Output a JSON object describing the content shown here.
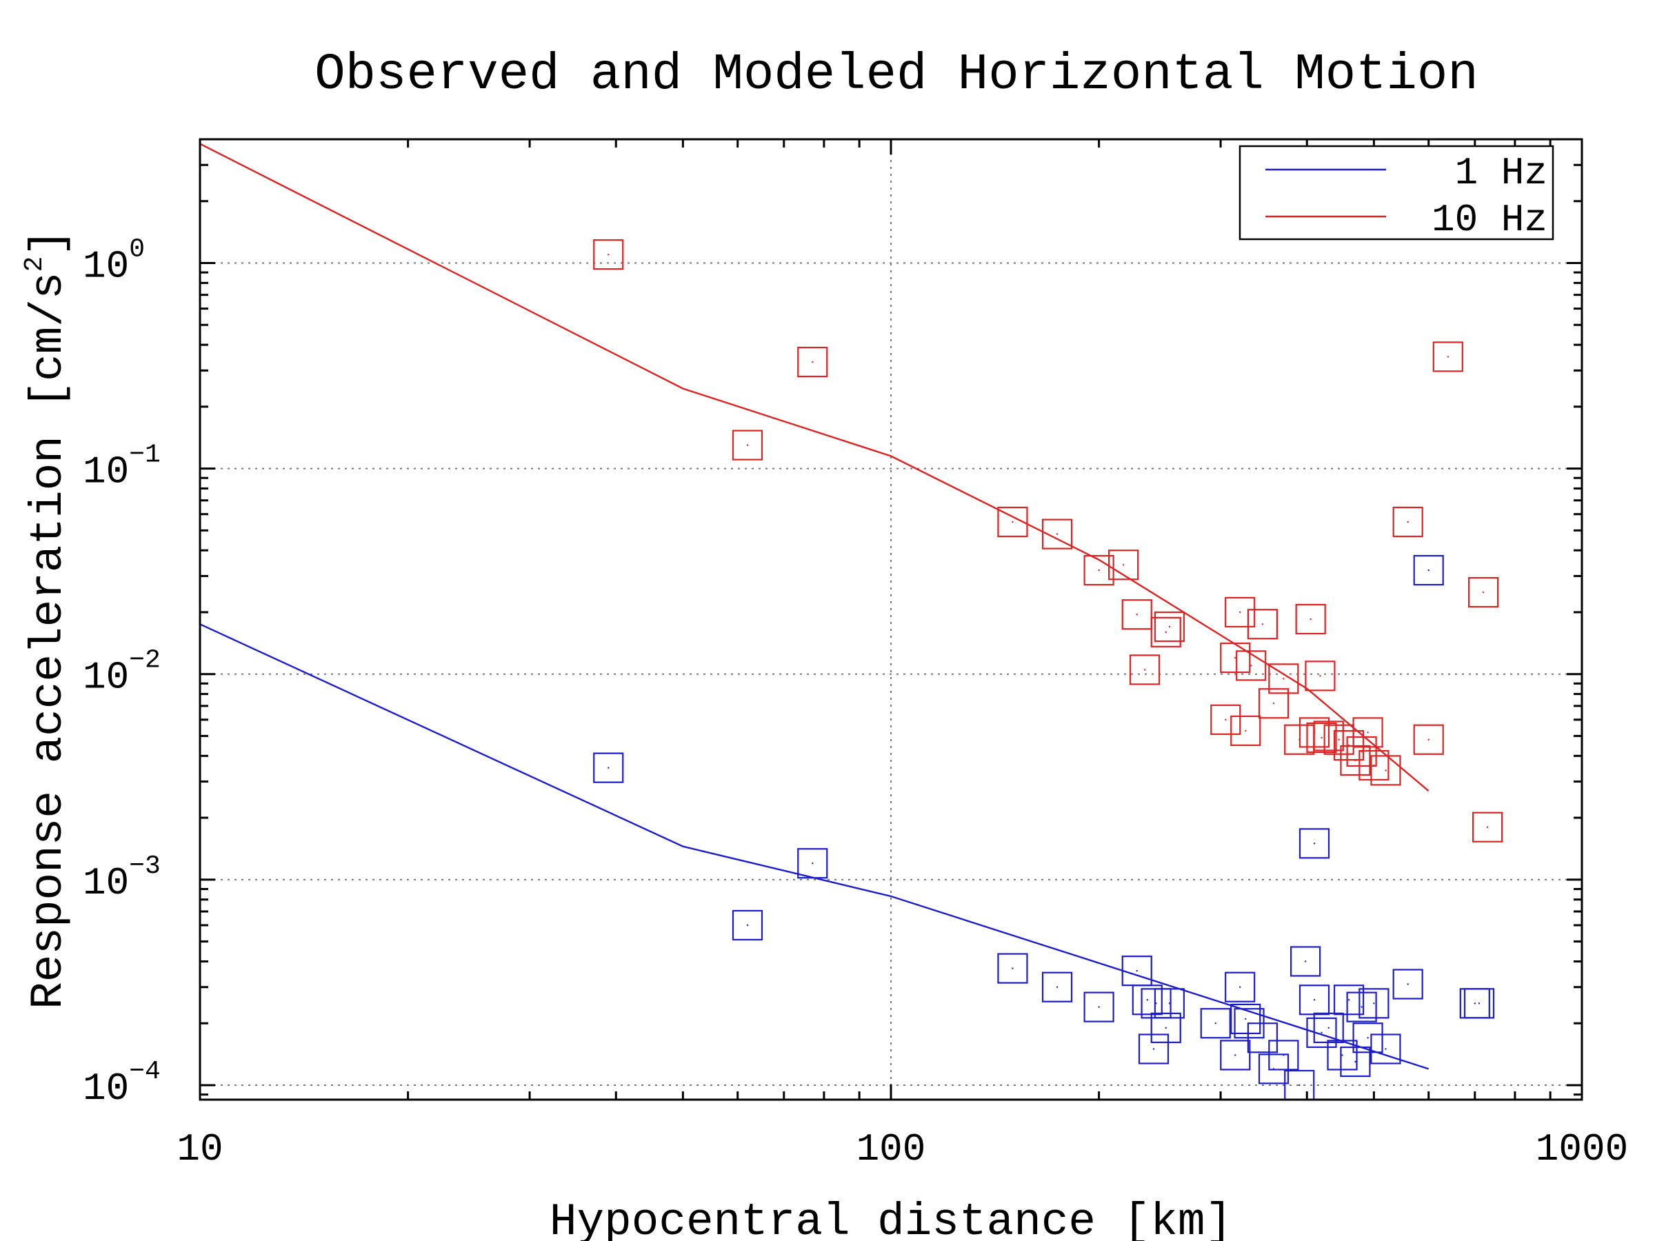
{
  "chart_data": {
    "type": "scatter",
    "title": "Observed and Modeled Horizontal Motion",
    "xlabel": "Hypocentral distance [km]",
    "ylabel": "Response acceleration [cm/s²]",
    "ylabel_base": "Response acceleration [cm/s",
    "ylabel_sup": "2",
    "ylabel_close": "]",
    "x_scale": "log",
    "y_scale": "log",
    "xlim": [
      10,
      1000
    ],
    "ylim": [
      8.5e-05,
      4.0
    ],
    "x_ticks": [
      {
        "value": 10,
        "label": "10"
      },
      {
        "value": 100,
        "label": "100"
      },
      {
        "value": 1000,
        "label": "1000"
      }
    ],
    "y_ticks": [
      {
        "value": 1,
        "base": "10",
        "exp": "0"
      },
      {
        "value": 0.1,
        "base": "10",
        "exp": "−1"
      },
      {
        "value": 0.01,
        "base": "10",
        "exp": "−2"
      },
      {
        "value": 0.001,
        "base": "10",
        "exp": "−3"
      },
      {
        "value": 0.0001,
        "base": "10",
        "exp": "−4"
      }
    ],
    "grid": true,
    "legend_position": "top-right",
    "colors": {
      "1Hz": "#1c1ccc",
      "10Hz": "#dd2222"
    },
    "series": [
      {
        "name": "1 Hz",
        "kind": "model",
        "color": "#1c1ccc",
        "x": [
          10,
          50,
          100,
          600
        ],
        "y": [
          0.0175,
          0.00145,
          0.00083,
          0.00012
        ]
      },
      {
        "name": "10 Hz",
        "kind": "model",
        "color": "#dd2222",
        "x": [
          10,
          50,
          100,
          200,
          400,
          600
        ],
        "y": [
          3.8,
          0.245,
          0.115,
          0.036,
          0.0085,
          0.0027
        ]
      },
      {
        "name": "1 Hz",
        "kind": "observed",
        "color": "#1c1ccc",
        "x": [
          39,
          62,
          77,
          150,
          174,
          200,
          227,
          235,
          240,
          242,
          250,
          253,
          295,
          315,
          320,
          326,
          330,
          345,
          358,
          370,
          390,
          398,
          410,
          420,
          430,
          450,
          460,
          470,
          480,
          490,
          500,
          520,
          560,
          600,
          700,
          710
        ],
        "y": [
          0.0035,
          0.0006,
          0.0012,
          0.00037,
          0.0003,
          0.00024,
          0.00036,
          0.00026,
          0.00015,
          0.00025,
          0.00019,
          0.00025,
          0.0002,
          0.00014,
          0.0003,
          0.00021,
          0.0002,
          0.00017,
          0.00012,
          0.00014,
          0.0001,
          0.0004,
          0.00026,
          0.00018,
          0.00019,
          0.00014,
          0.00026,
          0.00013,
          0.00024,
          0.00017,
          0.00025,
          0.00015,
          0.00031,
          0.032,
          0.00025,
          0.00025
        ],
        "extra": {
          "x": 410,
          "y": 0.0015
        }
      },
      {
        "name": "10 Hz",
        "kind": "observed",
        "color": "#dd2222",
        "x": [
          39,
          77,
          62,
          150,
          174,
          200,
          217,
          227,
          233,
          250,
          253,
          305,
          315,
          320,
          326,
          332,
          345,
          358,
          370,
          390,
          405,
          410,
          418,
          420,
          430,
          445,
          460,
          470,
          480,
          490,
          500,
          520,
          560,
          600,
          640,
          720
        ],
        "y": [
          1.1,
          0.33,
          0.13,
          0.055,
          0.048,
          0.032,
          0.034,
          0.0195,
          0.0105,
          0.016,
          0.017,
          0.006,
          0.012,
          0.02,
          0.0053,
          0.011,
          0.0175,
          0.0072,
          0.0095,
          0.0048,
          0.0185,
          0.0052,
          0.0098,
          0.0049,
          0.005,
          0.0048,
          0.0045,
          0.0038,
          0.0042,
          0.0052,
          0.0036,
          0.0034,
          0.055,
          0.0048,
          0.35,
          0.025
        ],
        "extra": {
          "x": 730,
          "y": 0.0018
        }
      }
    ]
  }
}
